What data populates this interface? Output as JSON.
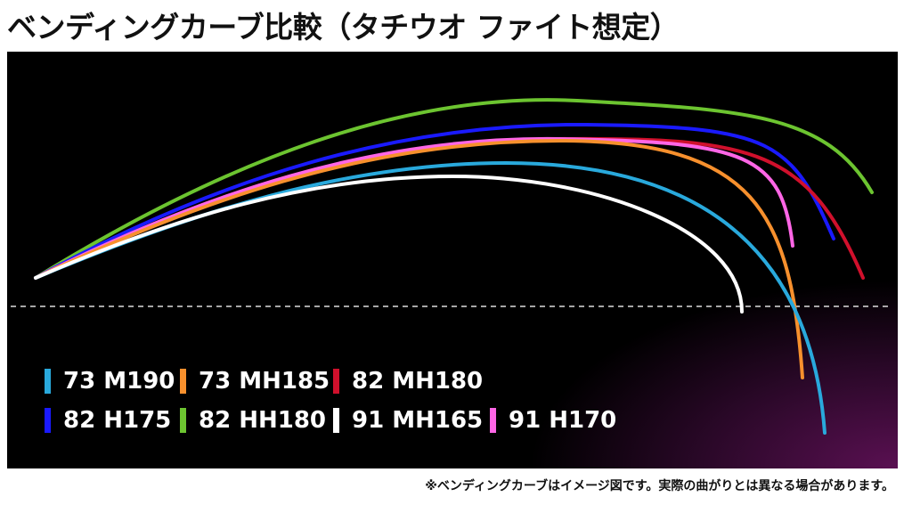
{
  "chart_data": {
    "type": "line",
    "title": "ベンディングカーブ比較（タチウオ ファイト想定）",
    "footnote": "※ベンディングカーブはイメージ図です。実際の曲がりとは異なる場合があります。",
    "grid": false,
    "baseline": "dashed",
    "legend_position": "bottom-left",
    "series": [
      {
        "name": "73 M190",
        "color": "#29a9dc"
      },
      {
        "name": "73 MH185",
        "color": "#f7902d"
      },
      {
        "name": "82 MH180",
        "color": "#d0102c"
      },
      {
        "name": "82 H175",
        "color": "#1a1aff"
      },
      {
        "name": "82 HH180",
        "color": "#6cc430"
      },
      {
        "name": "91 MH165",
        "color": "#ffffff"
      },
      {
        "name": "91 H170",
        "color": "#ff66e6"
      }
    ]
  }
}
